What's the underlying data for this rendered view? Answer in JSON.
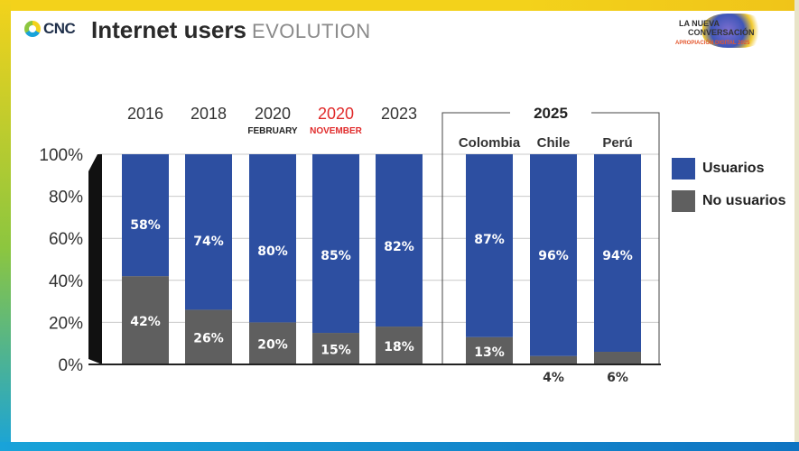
{
  "header": {
    "logo_text": "CNC",
    "title_main": "Internet users",
    "title_sub": "EVOLUTION",
    "event_logo": {
      "line1": "LA NUEVA",
      "line2": "CONVERSACIÓN",
      "line3": "APROPIACIÓN DIGITAL 2025"
    }
  },
  "colors": {
    "usuarios": "#2d4fa1",
    "no_usuarios": "#5f5f5f",
    "highlight": "#e02a2a",
    "text": "#333333"
  },
  "legend": [
    {
      "label": "Usuarios",
      "color": "#2d4fa1"
    },
    {
      "label": "No usuarios",
      "color": "#5f5f5f"
    }
  ],
  "chart_data": {
    "type": "bar",
    "stacked": true,
    "group_label": "2025",
    "categories": [
      "2016",
      "2018",
      "2020",
      "2020",
      "2023",
      "Colombia",
      "Chile",
      "Perú"
    ],
    "category_sublabels": [
      "",
      "",
      "FEBRUARY",
      "NOVEMBER",
      "",
      "",
      "",
      ""
    ],
    "highlighted_categories": [
      3
    ],
    "series": [
      {
        "name": "No usuarios",
        "values": [
          42,
          26,
          20,
          15,
          18,
          13,
          4,
          6
        ],
        "labels": [
          "42%",
          "26%",
          "20%",
          "15%",
          "18%",
          "13%",
          "4%",
          "6%"
        ]
      },
      {
        "name": "Usuarios",
        "values": [
          58,
          74,
          80,
          85,
          82,
          87,
          96,
          94
        ],
        "labels": [
          "58%",
          "74%",
          "80%",
          "85%",
          "82%",
          "87%",
          "96%",
          "94%"
        ]
      }
    ],
    "y_ticks": [
      "0%",
      "20%",
      "40%",
      "60%",
      "80%",
      "100%"
    ],
    "ylim": [
      0,
      100
    ],
    "grid": true,
    "legend_position": "right"
  }
}
